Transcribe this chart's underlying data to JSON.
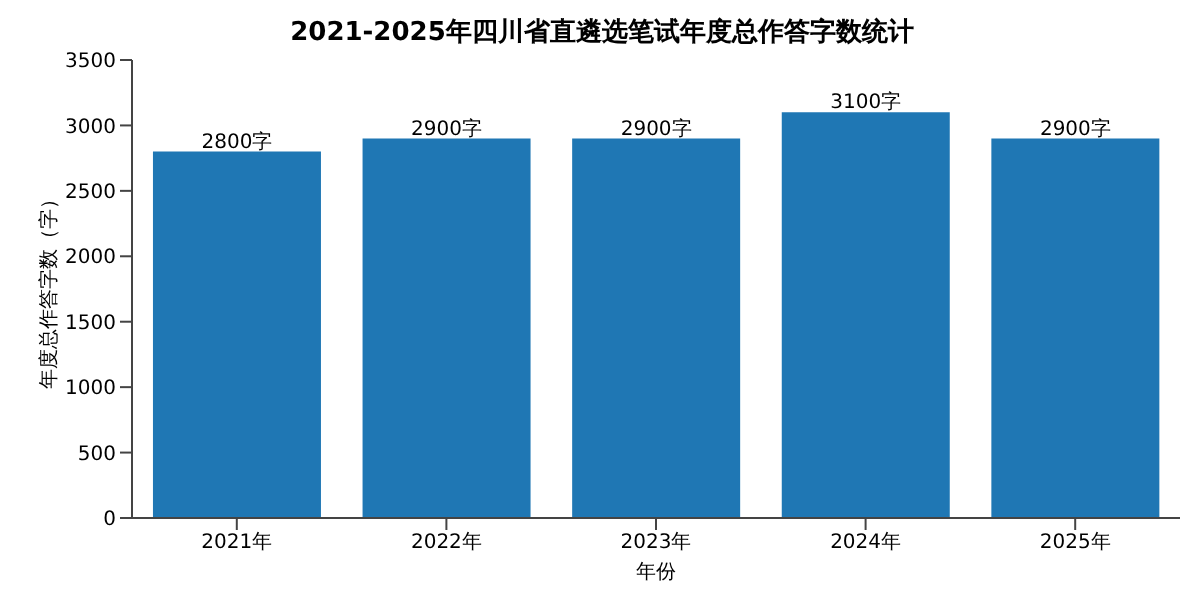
{
  "chart_data": {
    "type": "bar",
    "title": "2021-2025年四川省直遴选笔试年度总作答字数统计",
    "xlabel": "年份",
    "ylabel": "年度总作答字数（字）",
    "categories": [
      "2021年",
      "2022年",
      "2023年",
      "2024年",
      "2025年"
    ],
    "values": [
      2800,
      2900,
      2900,
      3100,
      2900
    ],
    "value_labels": [
      "2800字",
      "2900字",
      "2900字",
      "3100字",
      "2900字"
    ],
    "color": "#1f77b4",
    "ylim": [
      0,
      3500
    ],
    "yticks": [
      0,
      500,
      1000,
      1500,
      2000,
      2500,
      3000,
      3500
    ],
    "grid": false
  }
}
